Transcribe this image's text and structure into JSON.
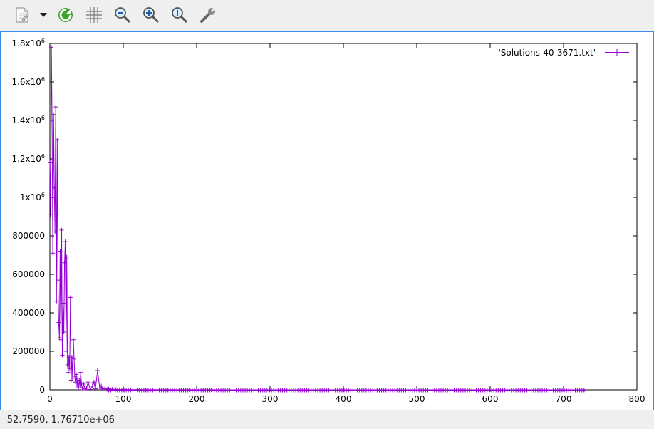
{
  "toolbar": {
    "buttons": [
      {
        "name": "export-button",
        "icon": "document-icon"
      },
      {
        "name": "export-menu-button",
        "icon": "chevron-down-icon"
      },
      {
        "name": "replot-button",
        "icon": "refresh-icon"
      },
      {
        "name": "grid-button",
        "icon": "grid-icon"
      },
      {
        "name": "zoom-previous-button",
        "icon": "zoom-out-icon"
      },
      {
        "name": "zoom-next-button",
        "icon": "zoom-in-icon"
      },
      {
        "name": "unzoom-button",
        "icon": "zoom-reset-icon"
      },
      {
        "name": "settings-button",
        "icon": "wrench-icon"
      }
    ]
  },
  "chart_data": {
    "type": "line",
    "title": "",
    "xlabel": "",
    "ylabel": "",
    "xlim": [
      0,
      800
    ],
    "ylim": [
      0,
      1800000
    ],
    "x_ticks": [
      "0",
      "100",
      "200",
      "300",
      "400",
      "500",
      "600",
      "700",
      "800"
    ],
    "y_ticks": [
      {
        "base": "0",
        "exp": ""
      },
      {
        "base": "200000",
        "exp": ""
      },
      {
        "base": "400000",
        "exp": ""
      },
      {
        "base": "600000",
        "exp": ""
      },
      {
        "base": "800000",
        "exp": ""
      },
      {
        "base": "1x10",
        "exp": "6"
      },
      {
        "base": "1.2x10",
        "exp": "6"
      },
      {
        "base": "1.4x10",
        "exp": "6"
      },
      {
        "base": "1.6x10",
        "exp": "6"
      },
      {
        "base": "1.8x10",
        "exp": "6"
      }
    ],
    "legend_position": "top-right",
    "series_color": "#9400d3",
    "series": [
      {
        "name": "'Solutions-40-3671.txt'",
        "x": [
          0,
          1,
          2,
          3,
          4,
          5,
          6,
          7,
          8,
          9,
          10,
          11,
          12,
          13,
          14,
          15,
          16,
          17,
          18,
          19,
          20,
          21,
          22,
          23,
          24,
          25,
          26,
          27,
          28,
          29,
          30,
          31,
          32,
          33,
          34,
          35,
          36,
          37,
          38,
          39,
          40,
          41,
          42,
          43,
          44,
          45,
          46,
          48,
          50,
          52,
          55,
          58,
          60,
          62,
          65,
          68,
          70,
          72,
          75,
          78,
          80,
          85,
          90,
          95,
          100,
          110,
          120,
          130,
          140,
          150,
          160,
          170,
          180,
          190,
          200,
          210,
          220,
          230,
          300,
          400,
          500,
          600,
          700,
          728
        ],
        "y": [
          1180000,
          910000,
          1780000,
          1400000,
          710000,
          1430000,
          1050000,
          820000,
          1470000,
          460000,
          1300000,
          570000,
          350000,
          270000,
          720000,
          260000,
          830000,
          180000,
          450000,
          300000,
          660000,
          770000,
          200000,
          690000,
          130000,
          90000,
          170000,
          110000,
          480000,
          50000,
          170000,
          60000,
          260000,
          160000,
          70000,
          40000,
          80000,
          20000,
          60000,
          10000,
          50000,
          20000,
          90000,
          30000,
          10000,
          0,
          30000,
          5000,
          10000,
          40000,
          2000,
          20000,
          40000,
          5000,
          100000,
          10000,
          20000,
          5000,
          10000,
          2000,
          5000,
          3000,
          2000,
          1000,
          2000,
          1000,
          1000,
          500,
          500,
          500,
          400,
          300,
          300,
          300,
          200,
          200,
          200,
          100,
          100,
          100,
          100,
          100,
          100,
          100
        ]
      }
    ]
  },
  "status": {
    "coords": "-52.7590,  1.76710e+06"
  }
}
